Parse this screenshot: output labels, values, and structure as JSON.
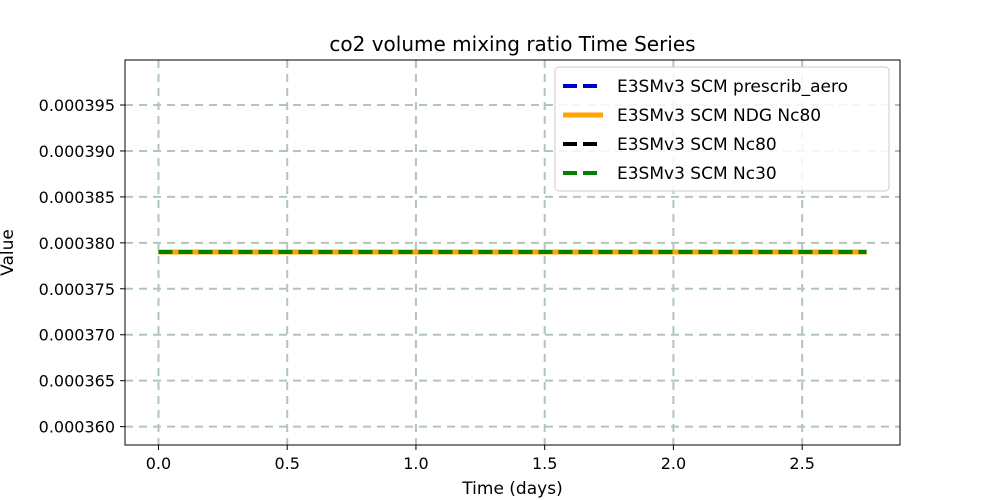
{
  "chart_data": {
    "type": "line",
    "title": "co2 volume mixing ratio Time Series",
    "xlabel": "Time (days)",
    "ylabel": "Value",
    "xlim": [
      -0.13,
      2.88
    ],
    "ylim": [
      0.000358,
      0.0003999
    ],
    "x_ticks": [
      0.0,
      0.5,
      1.0,
      1.5,
      2.0,
      2.5
    ],
    "x_tick_labels": [
      "0.0",
      "0.5",
      "1.0",
      "1.5",
      "2.0",
      "2.5"
    ],
    "y_ticks": [
      0.00036,
      0.000365,
      0.00037,
      0.000375,
      0.00038,
      0.000385,
      0.00039,
      0.000395
    ],
    "y_tick_labels": [
      "0.000360",
      "0.000365",
      "0.000370",
      "0.000375",
      "0.000380",
      "0.000385",
      "0.000390",
      "0.000395"
    ],
    "grid": true,
    "legend_position": "top-right",
    "series": [
      {
        "name": "E3SMv3 SCM prescrib_aero",
        "color": "#0000cc",
        "style": "dashed",
        "x": [
          0.0,
          2.75
        ],
        "y": [
          0.000379,
          0.000379
        ]
      },
      {
        "name": "E3SMv3 SCM NDG Nc80",
        "color": "#ffa500",
        "style": "solid",
        "x": [
          0.0,
          2.75
        ],
        "y": [
          0.000379,
          0.000379
        ]
      },
      {
        "name": "E3SMv3 SCM Nc80",
        "color": "#000000",
        "style": "dashed",
        "x": [
          0.0,
          2.75
        ],
        "y": [
          0.000379,
          0.000379
        ]
      },
      {
        "name": "E3SMv3 SCM Nc30",
        "color": "#007f00",
        "style": "dashed",
        "x": [
          0.0,
          2.75
        ],
        "y": [
          0.000379,
          0.000379
        ]
      }
    ]
  }
}
